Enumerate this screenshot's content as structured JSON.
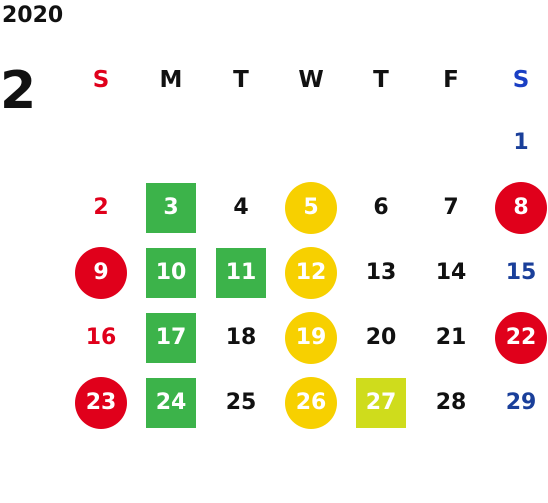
{
  "calendar": {
    "year": "2020",
    "month": "2",
    "weekdays": [
      {
        "label": "S",
        "color": "#e0001b"
      },
      {
        "label": "M",
        "color": "#111111"
      },
      {
        "label": "T",
        "color": "#111111"
      },
      {
        "label": "W",
        "color": "#111111"
      },
      {
        "label": "T",
        "color": "#111111"
      },
      {
        "label": "F",
        "color": "#111111"
      },
      {
        "label": "S",
        "color": "#1a3fc4"
      }
    ],
    "colors": {
      "sunday_text": "#e0001b",
      "saturday_text": "#1a3f9a",
      "weekday_text": "#111111",
      "holiday_circle": "#e0001b",
      "green_square": "#3cb34a",
      "yellow_circle": "#f7d000",
      "lime_square": "#cfdc1c"
    },
    "weeks": [
      [
        null,
        null,
        null,
        null,
        null,
        null,
        {
          "day": "1",
          "style": "sat"
        }
      ],
      [
        {
          "day": "2",
          "style": "sun"
        },
        {
          "day": "3",
          "style": "green-square"
        },
        {
          "day": "4",
          "style": "plain"
        },
        {
          "day": "5",
          "style": "yellow-circle"
        },
        {
          "day": "6",
          "style": "plain"
        },
        {
          "day": "7",
          "style": "plain"
        },
        {
          "day": "8",
          "style": "red-circle"
        }
      ],
      [
        {
          "day": "9",
          "style": "red-circle"
        },
        {
          "day": "10",
          "style": "green-square"
        },
        {
          "day": "11",
          "style": "green-square"
        },
        {
          "day": "12",
          "style": "yellow-circle"
        },
        {
          "day": "13",
          "style": "plain"
        },
        {
          "day": "14",
          "style": "plain"
        },
        {
          "day": "15",
          "style": "sat"
        }
      ],
      [
        {
          "day": "16",
          "style": "sun"
        },
        {
          "day": "17",
          "style": "green-square"
        },
        {
          "day": "18",
          "style": "plain"
        },
        {
          "day": "19",
          "style": "yellow-circle"
        },
        {
          "day": "20",
          "style": "plain"
        },
        {
          "day": "21",
          "style": "plain"
        },
        {
          "day": "22",
          "style": "red-circle"
        }
      ],
      [
        {
          "day": "23",
          "style": "red-circle"
        },
        {
          "day": "24",
          "style": "green-square"
        },
        {
          "day": "25",
          "style": "plain"
        },
        {
          "day": "26",
          "style": "yellow-circle"
        },
        {
          "day": "27",
          "style": "lime-square"
        },
        {
          "day": "28",
          "style": "plain"
        },
        {
          "day": "29",
          "style": "sat"
        }
      ]
    ]
  }
}
